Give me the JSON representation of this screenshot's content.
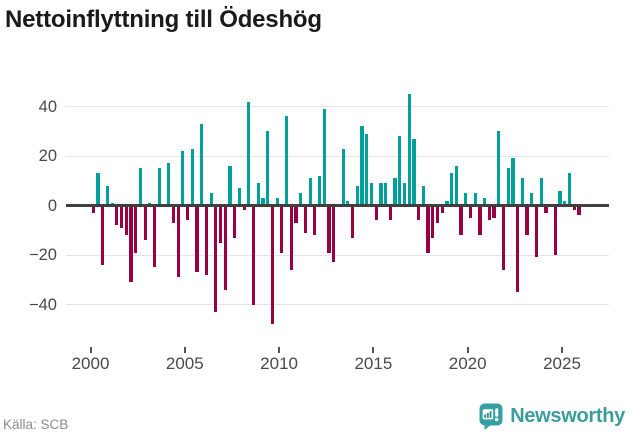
{
  "title": "Nettoinflyttning till Ödeshög",
  "footer": {
    "source": "Källa: SCB",
    "brand": "Newsworthy"
  },
  "colors": {
    "positive_bar": "#00a09b",
    "negative_bar": "#980043",
    "brand_teal": "#3a9c9c",
    "logo_bubble": "#35a0a0",
    "logo_glyph_bars": "#2e8f8f",
    "title_text": "#1a1a1a",
    "axis_text": "#4a4a4a",
    "source_text": "#8a8a92",
    "gridline": "#e4e4e4",
    "zero_line": "#3f3f3f"
  },
  "chart_data": {
    "type": "bar",
    "title": "Nettoinflyttning till Ödeshög",
    "xlabel": "",
    "ylabel": "",
    "frequency": "quarterly",
    "start": "2000 Q1",
    "end": "2025 Q4",
    "grid": "horizontal",
    "legend": "none",
    "ylim": [
      -53,
      50
    ],
    "yticks": [
      40,
      20,
      0,
      -20,
      -40
    ],
    "y_tick_labels": [
      "40",
      "20",
      "0",
      "−20",
      "−40"
    ],
    "x_tick_years": [
      2000,
      2005,
      2010,
      2015,
      2020,
      2025
    ],
    "x_tick_labels": [
      "2000",
      "2005",
      "2010",
      "2015",
      "2020",
      "2025"
    ],
    "categories": [
      "2000 Q1",
      "2000 Q2",
      "2000 Q3",
      "2000 Q4",
      "2001 Q1",
      "2001 Q2",
      "2001 Q3",
      "2001 Q4",
      "2002 Q1",
      "2002 Q2",
      "2002 Q3",
      "2002 Q4",
      "2003 Q1",
      "2003 Q2",
      "2003 Q3",
      "2003 Q4",
      "2004 Q1",
      "2004 Q2",
      "2004 Q3",
      "2004 Q4",
      "2005 Q1",
      "2005 Q2",
      "2005 Q3",
      "2005 Q4",
      "2006 Q1",
      "2006 Q2",
      "2006 Q3",
      "2006 Q4",
      "2007 Q1",
      "2007 Q2",
      "2007 Q3",
      "2007 Q4",
      "2008 Q1",
      "2008 Q2",
      "2008 Q3",
      "2008 Q4",
      "2009 Q1",
      "2009 Q2",
      "2009 Q3",
      "2009 Q4",
      "2010 Q1",
      "2010 Q2",
      "2010 Q3",
      "2010 Q4",
      "2011 Q1",
      "2011 Q2",
      "2011 Q3",
      "2011 Q4",
      "2012 Q1",
      "2012 Q2",
      "2012 Q3",
      "2012 Q4",
      "2013 Q1",
      "2013 Q2",
      "2013 Q3",
      "2013 Q4",
      "2014 Q1",
      "2014 Q2",
      "2014 Q3",
      "2014 Q4",
      "2015 Q1",
      "2015 Q2",
      "2015 Q3",
      "2015 Q4",
      "2016 Q1",
      "2016 Q2",
      "2016 Q3",
      "2016 Q4",
      "2017 Q1",
      "2017 Q2",
      "2017 Q3",
      "2017 Q4",
      "2018 Q1",
      "2018 Q2",
      "2018 Q3",
      "2018 Q4",
      "2019 Q1",
      "2019 Q2",
      "2019 Q3",
      "2019 Q4",
      "2020 Q1",
      "2020 Q2",
      "2020 Q3",
      "2020 Q4",
      "2021 Q1",
      "2021 Q2",
      "2021 Q3",
      "2021 Q4",
      "2022 Q1",
      "2022 Q2",
      "2022 Q3",
      "2022 Q4",
      "2023 Q1",
      "2023 Q2",
      "2023 Q3",
      "2023 Q4",
      "2024 Q1",
      "2024 Q2",
      "2024 Q3",
      "2024 Q4",
      "2025 Q1",
      "2025 Q2",
      "2025 Q3",
      "2025 Q4"
    ],
    "values": [
      -3,
      13,
      -24,
      8,
      1,
      -8,
      -9,
      -12,
      -31,
      -19,
      15,
      -14,
      1,
      -25,
      15,
      0,
      17,
      -7,
      -29,
      22,
      -6,
      23,
      -27,
      33,
      -28,
      5,
      -43,
      -15,
      -34,
      16,
      -13,
      7,
      -2,
      42,
      -40,
      9,
      3,
      30,
      -48,
      3,
      -19,
      36,
      -26,
      -7,
      5,
      -11,
      11,
      -12,
      12,
      39,
      -19,
      -23,
      0,
      23,
      2,
      -13,
      8,
      32,
      29,
      9,
      -6,
      9,
      9,
      -6,
      11,
      28,
      9,
      45,
      27,
      -6,
      8,
      -19,
      -13,
      -7,
      -3,
      2,
      13,
      16,
      -12,
      5,
      -5,
      5,
      -12,
      3,
      -6,
      -5,
      30,
      -26,
      15,
      19,
      -35,
      11,
      -12,
      5,
      -21,
      11,
      -3,
      0,
      -20,
      6,
      2,
      13,
      -2,
      -4
    ]
  }
}
